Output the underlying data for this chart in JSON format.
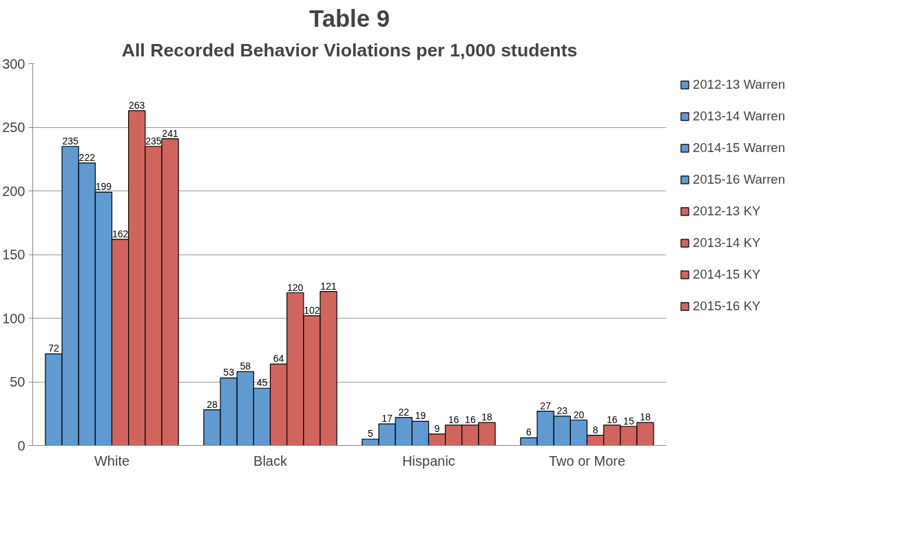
{
  "chart_data": {
    "type": "bar",
    "title": "Table 9",
    "subtitle": "All Recorded Behavior Violations per 1,000 students",
    "categories": [
      "White",
      "Black",
      "Hispanic",
      "Two or More"
    ],
    "series": [
      {
        "name": "2012-13 Warren",
        "color": "#6199d1",
        "values": [
          72,
          28,
          5,
          6
        ]
      },
      {
        "name": "2013-14 Warren",
        "color": "#6199d1",
        "values": [
          235,
          53,
          17,
          27
        ]
      },
      {
        "name": "2014-15 Warren",
        "color": "#6199d1",
        "values": [
          222,
          58,
          22,
          23
        ]
      },
      {
        "name": "2015-16 Warren",
        "color": "#6199d1",
        "values": [
          199,
          45,
          19,
          20
        ]
      },
      {
        "name": "2012-13 KY",
        "color": "#d0655e",
        "values": [
          162,
          64,
          9,
          8
        ]
      },
      {
        "name": "2013-14 KY",
        "color": "#d0655e",
        "values": [
          263,
          120,
          16,
          16
        ]
      },
      {
        "name": "2014-15 KY",
        "color": "#d0655e",
        "values": [
          235,
          102,
          16,
          15
        ]
      },
      {
        "name": "2015-16 KY",
        "color": "#d0655e",
        "values": [
          241,
          121,
          18,
          18
        ]
      }
    ],
    "ylim": [
      0,
      300
    ],
    "yticks": [
      0,
      50,
      100,
      150,
      200,
      250,
      300
    ],
    "grid": "y",
    "legend": "right",
    "data_labels": true
  }
}
